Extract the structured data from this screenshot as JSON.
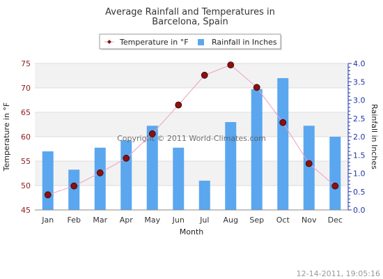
{
  "chart_data": {
    "type": "bar",
    "title_line1": "Average Rainfall and Temperatures in",
    "title_line2": "Barcelona, Spain",
    "categories": [
      "Jan",
      "Feb",
      "Mar",
      "Apr",
      "May",
      "Jun",
      "Jul",
      "Aug",
      "Sep",
      "Oct",
      "Nov",
      "Dec"
    ],
    "series": [
      {
        "name": "Rainfall in Inches",
        "kind": "bar",
        "axis": "right",
        "color": "#5ba7ef",
        "values": [
          1.6,
          1.1,
          1.7,
          1.9,
          2.3,
          1.7,
          0.8,
          2.4,
          3.3,
          3.6,
          2.3,
          2.0
        ]
      },
      {
        "name": "Temperature in °F",
        "kind": "line",
        "axis": "left",
        "color": "#ef9dc4",
        "marker_color": "#8b1010",
        "values": [
          48.1,
          49.9,
          52.6,
          55.6,
          60.6,
          66.5,
          72.6,
          74.7,
          70.1,
          62.9,
          54.5,
          49.9
        ]
      }
    ],
    "xlabel": "Month",
    "ylabel_left": "Temperature in °F",
    "ylabel_right": "Rainfall in Inches",
    "ylim_left": [
      45,
      75
    ],
    "yticks_left": [
      "45",
      "50",
      "55",
      "60",
      "65",
      "70",
      "75"
    ],
    "ylim_right": [
      0,
      4
    ],
    "yticks_right": [
      "0.0",
      "0.5",
      "1.0",
      "1.5",
      "2.0",
      "2.5",
      "3.0",
      "3.5",
      "4.0"
    ],
    "grid": true,
    "legend_position": "top-center",
    "watermark": "Copyright © 2011 World-Climates.com",
    "timestamp": "12-14-2011, 19:05:16"
  }
}
